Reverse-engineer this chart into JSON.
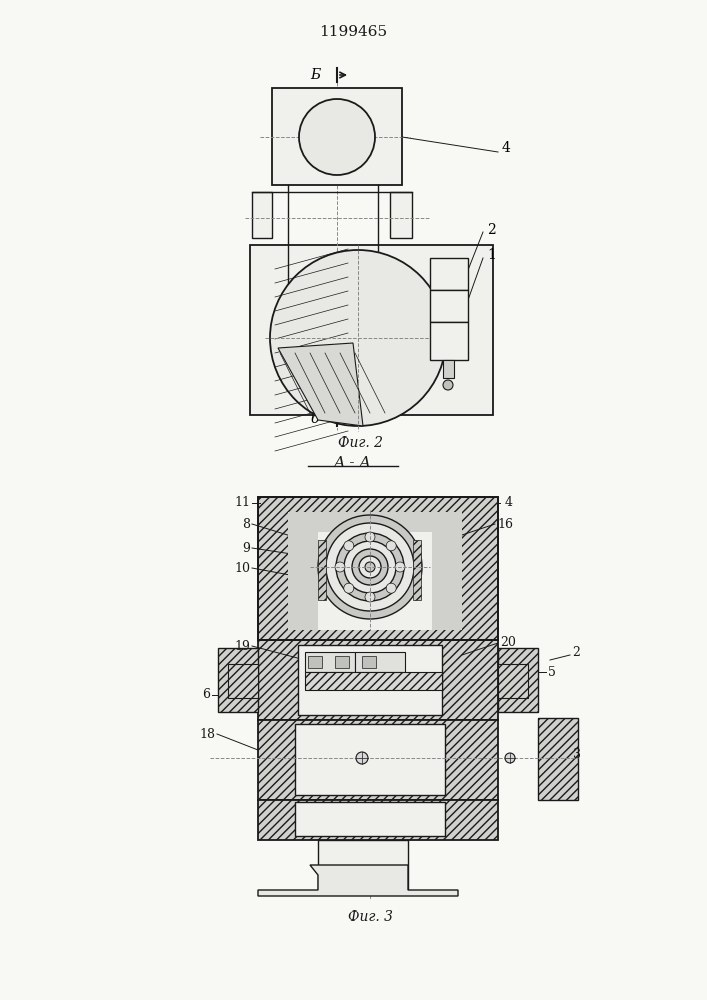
{
  "title": "1199465",
  "fig2_caption": "Фиг. 2",
  "fig3_caption": "Фиг. 3",
  "section_label": "А - А",
  "bg_color": "#f8f8f5",
  "line_color": "#1a1a1a"
}
